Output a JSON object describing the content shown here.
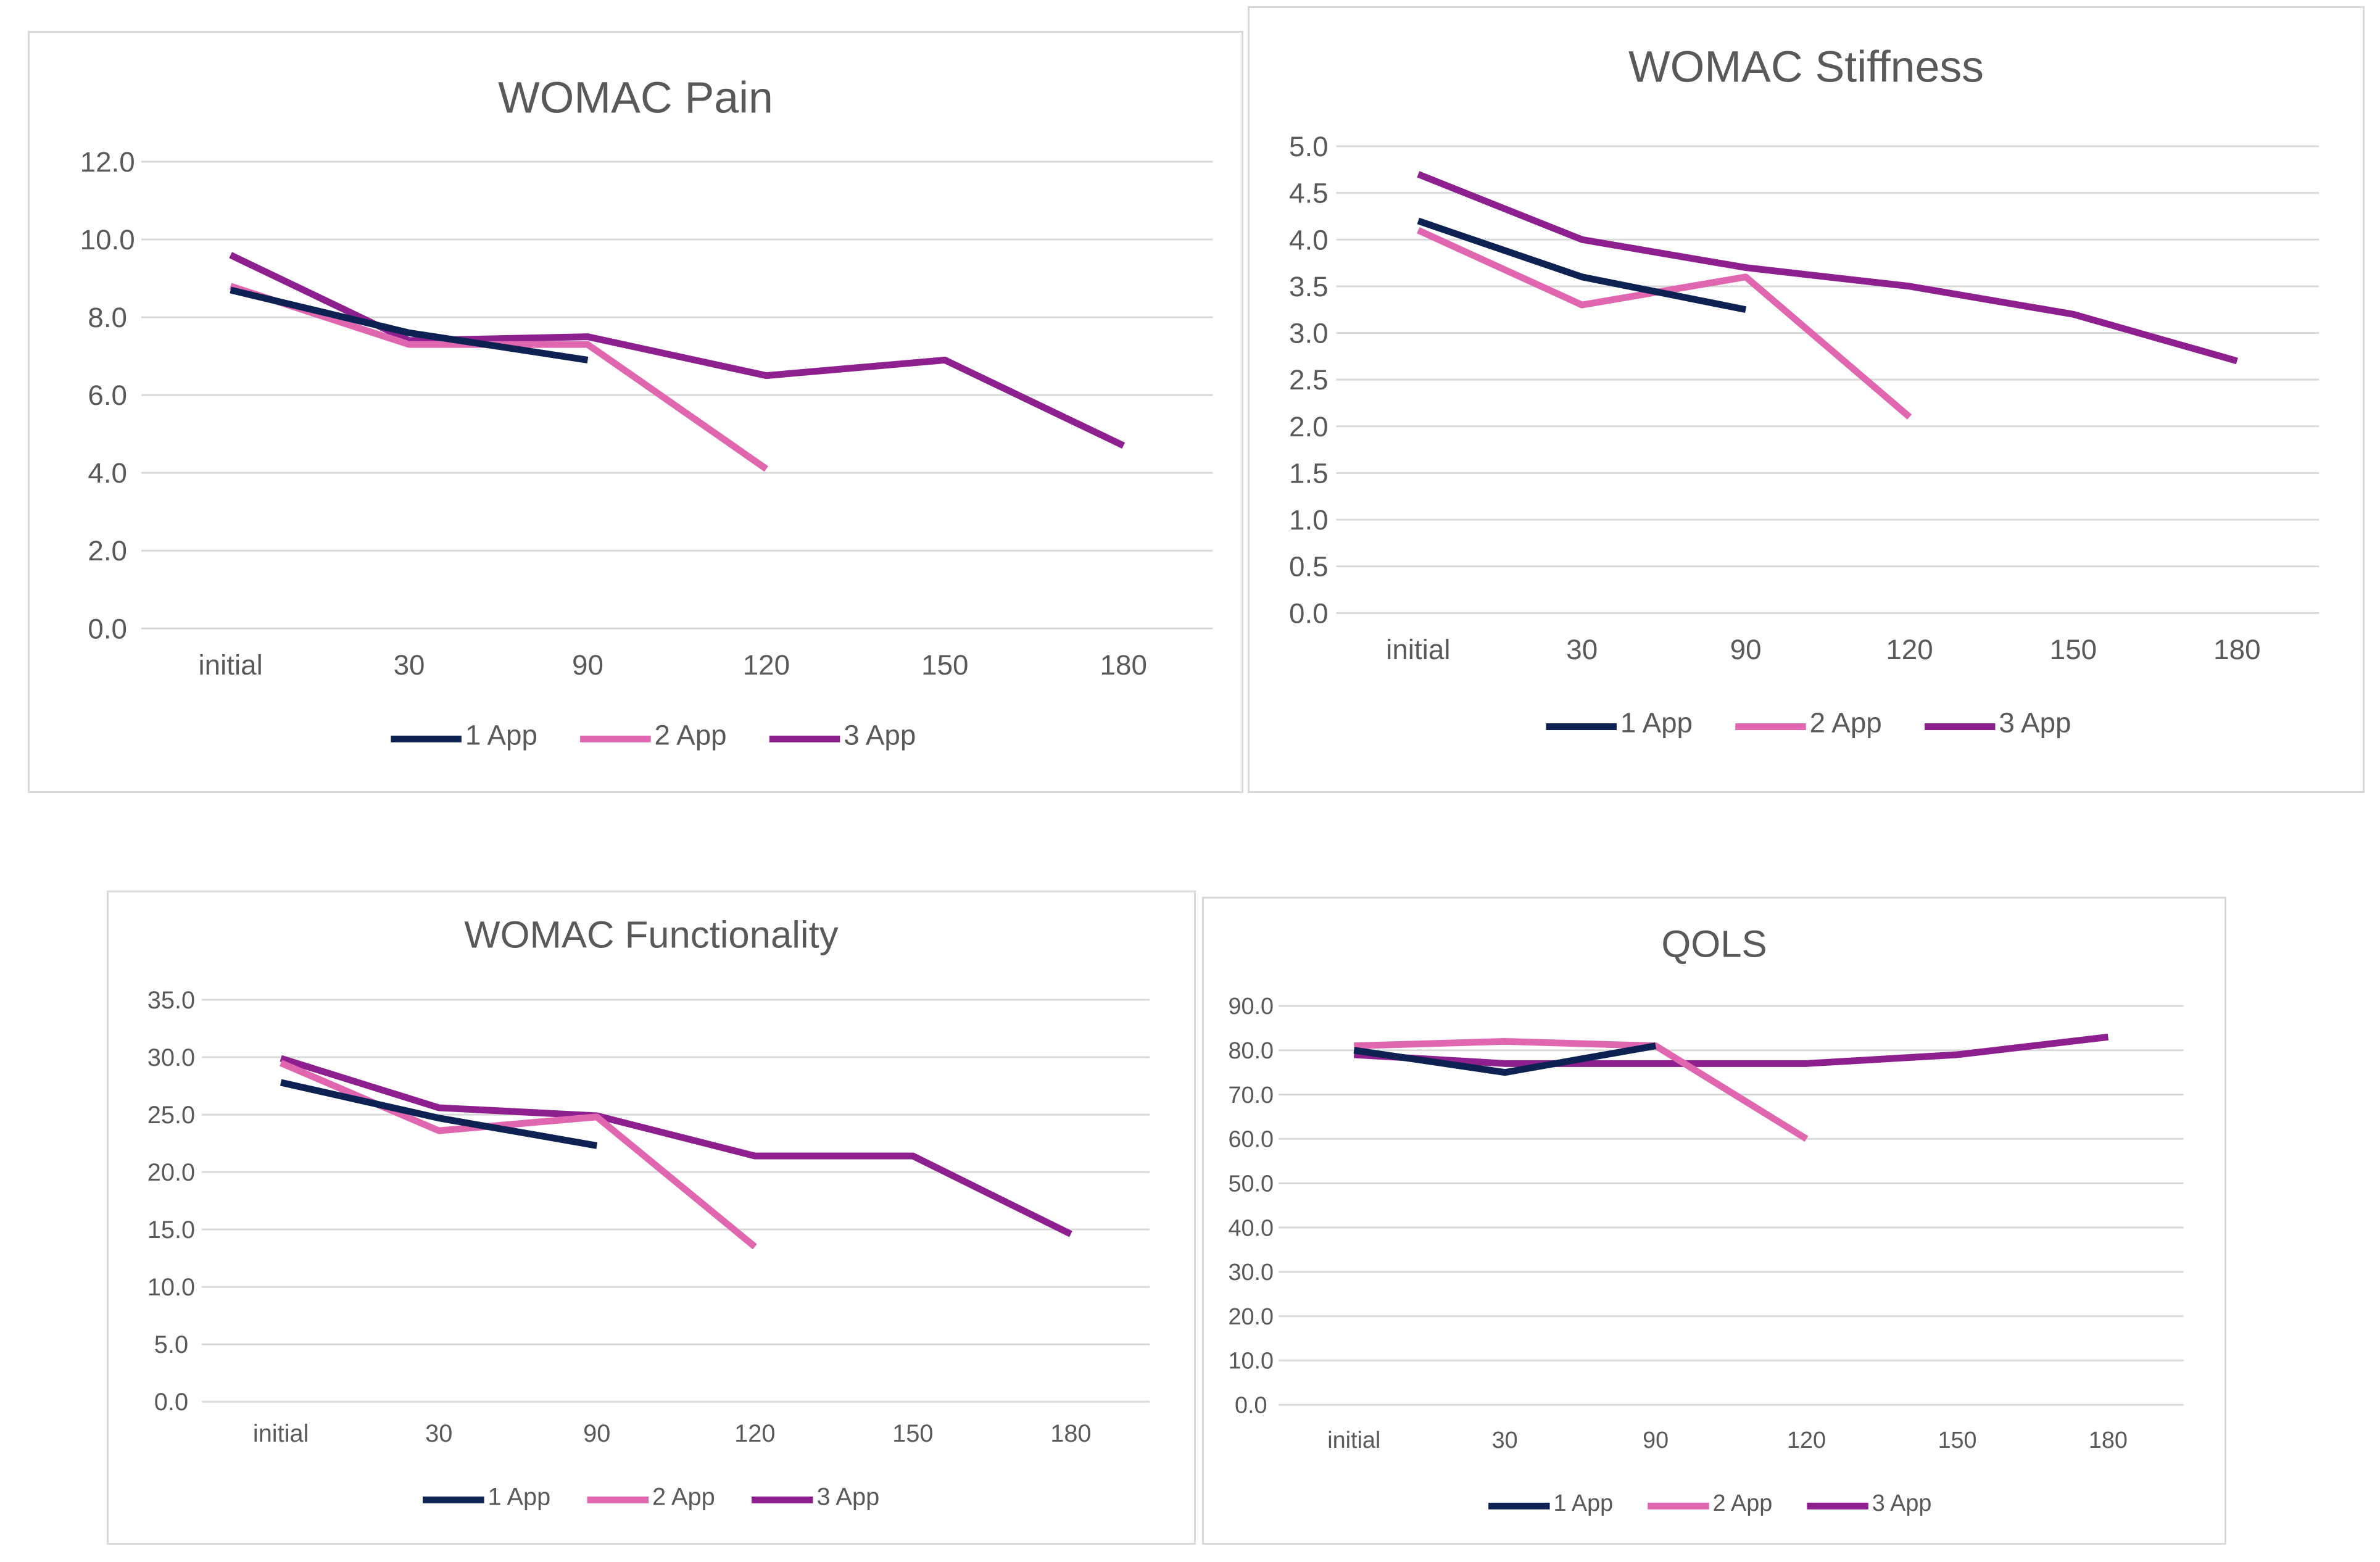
{
  "colors": {
    "app1": "#0d2252",
    "app2": "#e066b0",
    "app3": "#8e1f8e"
  },
  "chart_data": [
    {
      "type": "line",
      "title": "WOMAC Pain",
      "categories": [
        "initial",
        "30",
        "90",
        "120",
        "150",
        "180"
      ],
      "yticks": [
        "0.0",
        "2.0",
        "4.0",
        "6.0",
        "8.0",
        "10.0",
        "12.0"
      ],
      "ylim": [
        0,
        12
      ],
      "series": [
        {
          "name": "1 App",
          "values": [
            8.7,
            7.6,
            6.9,
            null,
            null,
            null
          ]
        },
        {
          "name": "2 App",
          "values": [
            8.8,
            7.3,
            7.3,
            4.1,
            null,
            null
          ]
        },
        {
          "name": "3 App",
          "values": [
            9.6,
            7.4,
            7.5,
            6.5,
            6.9,
            4.7
          ]
        }
      ],
      "legend_position": "bottom"
    },
    {
      "type": "line",
      "title": "WOMAC Stiffness",
      "categories": [
        "initial",
        "30",
        "90",
        "120",
        "150",
        "180"
      ],
      "yticks": [
        "0.0",
        "0.5",
        "1.0",
        "1.5",
        "2.0",
        "2.5",
        "3.0",
        "3.5",
        "4.0",
        "4.5",
        "5.0"
      ],
      "ylim": [
        0,
        5
      ],
      "series": [
        {
          "name": "1 App",
          "values": [
            4.2,
            3.6,
            3.25,
            null,
            null,
            null
          ]
        },
        {
          "name": "2 App",
          "values": [
            4.1,
            3.3,
            3.6,
            2.1,
            null,
            null
          ]
        },
        {
          "name": "3 App",
          "values": [
            4.7,
            4.0,
            3.7,
            3.5,
            3.2,
            2.7
          ]
        }
      ],
      "legend_position": "bottom"
    },
    {
      "type": "line",
      "title": "WOMAC Functionality",
      "categories": [
        "initial",
        "30",
        "90",
        "120",
        "150",
        "180"
      ],
      "yticks": [
        "0.0",
        "5.0",
        "10.0",
        "15.0",
        "20.0",
        "25.0",
        "30.0",
        "35.0"
      ],
      "ylim": [
        0,
        35
      ],
      "series": [
        {
          "name": "1 App",
          "values": [
            27.8,
            24.7,
            22.3,
            null,
            null,
            null
          ]
        },
        {
          "name": "2 App",
          "values": [
            29.5,
            23.6,
            24.8,
            13.5,
            null,
            null
          ]
        },
        {
          "name": "3 App",
          "values": [
            29.9,
            25.6,
            24.9,
            21.4,
            21.4,
            14.6
          ]
        }
      ],
      "legend_position": "bottom"
    },
    {
      "type": "line",
      "title": "QOLS",
      "categories": [
        "initial",
        "30",
        "90",
        "120",
        "150",
        "180"
      ],
      "yticks": [
        "0.0",
        "10.0",
        "20.0",
        "30.0",
        "40.0",
        "50.0",
        "60.0",
        "70.0",
        "80.0",
        "90.0"
      ],
      "ylim": [
        0,
        90
      ],
      "series": [
        {
          "name": "1 App",
          "values": [
            80,
            75,
            81,
            null,
            null,
            null
          ]
        },
        {
          "name": "2 App",
          "values": [
            81,
            82,
            81,
            60,
            null,
            null
          ]
        },
        {
          "name": "3 App",
          "values": [
            79,
            77,
            77,
            77,
            79,
            83
          ]
        }
      ],
      "legend_position": "bottom"
    }
  ]
}
